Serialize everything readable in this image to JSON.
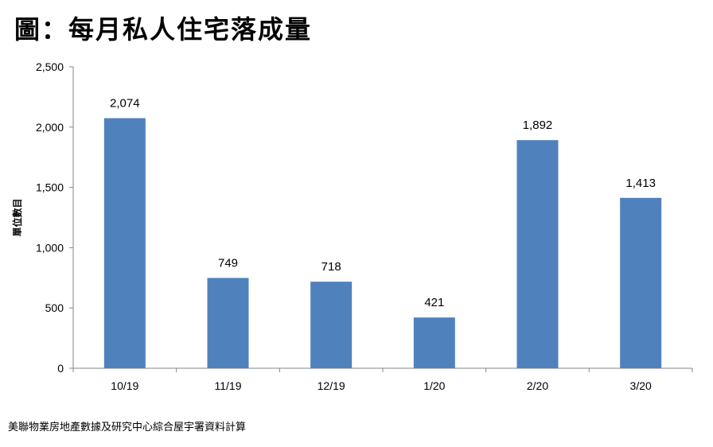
{
  "chart_data": {
    "type": "bar",
    "title": "圖：每月私人住宅落成量",
    "ylabel": "單位數目",
    "xlabel": "",
    "categories": [
      "10/19",
      "11/19",
      "12/19",
      "1/20",
      "2/20",
      "3/20"
    ],
    "values": [
      2074,
      749,
      718,
      421,
      1892,
      1413
    ],
    "data_labels": [
      "2,074",
      "749",
      "718",
      "421",
      "1,892",
      "1,413"
    ],
    "ylim": [
      0,
      2500
    ],
    "yticks": [
      0,
      500,
      1000,
      1500,
      2000,
      2500
    ],
    "ytick_labels": [
      "0",
      "500",
      "1,000",
      "1,500",
      "2,000",
      "2,500"
    ],
    "bar_color": "#4F81BD",
    "grid": false,
    "legend": "none",
    "source": "美聯物業房地產數據及研究中心綜合屋宇署資料計算"
  }
}
